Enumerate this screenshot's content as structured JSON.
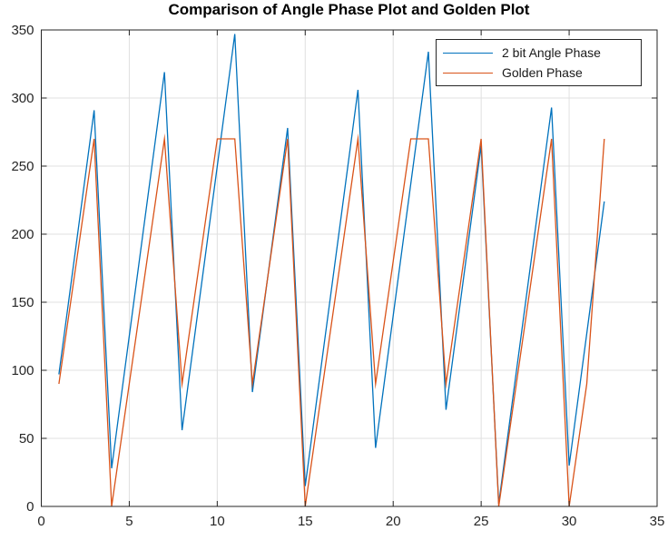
{
  "figure": {
    "title": "Comparison of Angle Phase Plot and Golden Plot"
  },
  "legend": {
    "entries": [
      {
        "label": "2 bit Angle Phase",
        "color": "#0072BD"
      },
      {
        "label": "Golden Phase",
        "color": "#D95319"
      }
    ]
  },
  "chart_data": {
    "type": "line",
    "title": "Comparison of Angle Phase Plot and Golden Plot",
    "xlabel": "",
    "ylabel": "",
    "xlim": [
      0,
      35
    ],
    "ylim": [
      0,
      350
    ],
    "x_ticks": [
      0,
      5,
      10,
      15,
      20,
      25,
      30,
      35
    ],
    "y_ticks": [
      0,
      50,
      100,
      150,
      200,
      250,
      300,
      350
    ],
    "grid": true,
    "legend_position": "top-right-inside",
    "axis_color": "#262626",
    "grid_color": "#e0e0e0",
    "x": [
      1,
      2,
      3,
      4,
      5,
      6,
      7,
      8,
      9,
      10,
      11,
      12,
      13,
      14,
      15,
      16,
      17,
      18,
      19,
      20,
      21,
      22,
      23,
      24,
      25,
      26,
      27,
      28,
      29,
      30,
      31,
      32
    ],
    "series": [
      {
        "name": "2 bit Angle Phase",
        "color": "#0072BD",
        "values": [
          97,
          194,
          291,
          28,
          125,
          222,
          319,
          56,
          153,
          250,
          347,
          84,
          181,
          278,
          15,
          112,
          209,
          306,
          43,
          140,
          237,
          334,
          71,
          168,
          265,
          2,
          99,
          196,
          293,
          30,
          127,
          224
        ]
      },
      {
        "name": "Golden Phase",
        "color": "#D95319",
        "values": [
          90,
          180,
          270,
          0,
          90,
          180,
          270,
          90,
          180,
          270,
          270,
          90,
          180,
          270,
          0,
          90,
          180,
          270,
          90,
          180,
          270,
          270,
          90,
          180,
          270,
          0,
          90,
          180,
          270,
          0,
          90,
          270
        ]
      }
    ]
  }
}
